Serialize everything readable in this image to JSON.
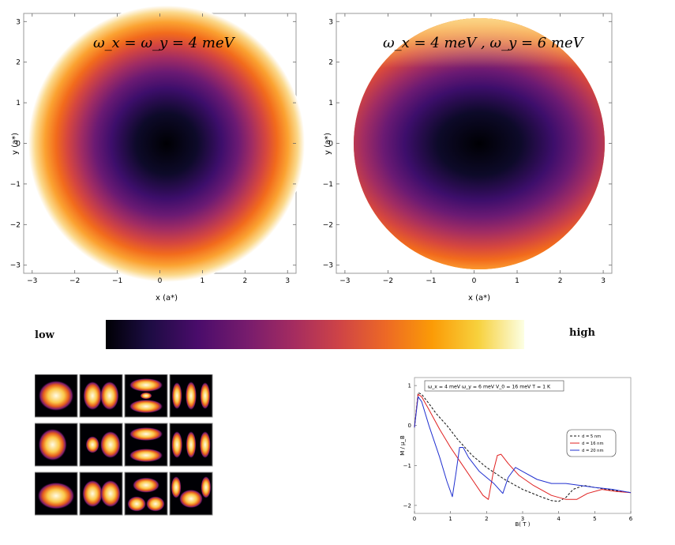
{
  "panels": {
    "left": {
      "annotation": "ω_x = ω_y = 4 meV",
      "xlabel": "x (a*)",
      "ylabel": "y (a*)"
    },
    "right": {
      "annotation": "ω_x = 4 meV , ω_y = 6 meV",
      "xlabel": "x (a*)",
      "ylabel": "y (a*)"
    }
  },
  "colorbar": {
    "low_label": "low",
    "high_label": "high"
  },
  "chart_data": [
    {
      "type": "heatmap",
      "title": "ω_x = ω_y = 4 meV",
      "xlabel": "x (a*)",
      "ylabel": "y (a*)",
      "xlim": [
        -3.2,
        3.2
      ],
      "ylim": [
        -3.2,
        3.2
      ],
      "ticks": [
        -3,
        -2,
        -1,
        0,
        1,
        2,
        3
      ],
      "colormap": "inferno",
      "omega_x_meV": 4,
      "omega_y_meV": 4
    },
    {
      "type": "heatmap",
      "title": "ω_x = 4 meV , ω_y = 6 meV",
      "xlabel": "x (a*)",
      "ylabel": "y (a*)",
      "xlim": [
        -3.2,
        3.2
      ],
      "ylim": [
        -3.2,
        3.2
      ],
      "ticks": [
        -3,
        -2,
        -1,
        0,
        1,
        2,
        3
      ],
      "colormap": "inferno",
      "omega_x_meV": 4,
      "omega_y_meV": 6
    },
    {
      "type": "line",
      "xlabel": "B( T )",
      "ylabel": "M / μ_B",
      "xlim": [
        0,
        6
      ],
      "ylim": [
        -2.2,
        1.2
      ],
      "xticks": [
        0,
        1,
        2,
        3,
        4,
        5,
        6
      ],
      "yticks": [
        1,
        0,
        -1,
        -2
      ],
      "legend_placement": "right",
      "info": "ω_x = 4  meV    ω_y = 6 meV    V_0 = 16 meV   T = 1 K",
      "series": [
        {
          "name": "d = 5 nm",
          "color": "#111111",
          "dash": true,
          "x": [
            0,
            0.1,
            0.2,
            0.4,
            0.6,
            0.9,
            1.2,
            1.6,
            2.0,
            2.5,
            3.0,
            3.5,
            3.8,
            4.0,
            4.2,
            4.4,
            4.7,
            5.0,
            5.5,
            6.0
          ],
          "y": [
            -0.05,
            0.82,
            0.78,
            0.55,
            0.3,
            0.0,
            -0.35,
            -0.75,
            -1.05,
            -1.35,
            -1.6,
            -1.78,
            -1.88,
            -1.9,
            -1.8,
            -1.6,
            -1.5,
            -1.55,
            -1.62,
            -1.68
          ]
        },
        {
          "name": "d = 16 nm",
          "color": "#e02020",
          "dash": false,
          "x": [
            0,
            0.1,
            0.2,
            0.4,
            0.7,
            1.0,
            1.3,
            1.6,
            1.9,
            2.05,
            2.2,
            2.3,
            2.4,
            2.6,
            2.9,
            3.3,
            3.8,
            4.2,
            4.5,
            4.8,
            5.2,
            5.6,
            6.0
          ],
          "y": [
            -0.05,
            0.78,
            0.72,
            0.4,
            -0.1,
            -0.55,
            -0.95,
            -1.35,
            -1.75,
            -1.85,
            -1.1,
            -0.75,
            -0.72,
            -0.95,
            -1.25,
            -1.5,
            -1.75,
            -1.85,
            -1.85,
            -1.7,
            -1.6,
            -1.65,
            -1.68
          ]
        },
        {
          "name": "d = 20 nm",
          "color": "#2030d0",
          "dash": false,
          "x": [
            0,
            0.1,
            0.2,
            0.4,
            0.7,
            0.9,
            1.05,
            1.15,
            1.25,
            1.35,
            1.5,
            1.8,
            2.2,
            2.45,
            2.6,
            2.8,
            3.0,
            3.4,
            3.8,
            4.2,
            4.6,
            5.0,
            5.5,
            6.0
          ],
          "y": [
            -0.05,
            0.72,
            0.6,
            0.0,
            -0.8,
            -1.4,
            -1.78,
            -1.2,
            -0.55,
            -0.55,
            -0.8,
            -1.15,
            -1.45,
            -1.7,
            -1.3,
            -1.05,
            -1.15,
            -1.35,
            -1.45,
            -1.45,
            -1.5,
            -1.55,
            -1.6,
            -1.68
          ]
        }
      ]
    }
  ],
  "orbitals": {
    "grid": [
      [
        "s",
        "px",
        "dx2",
        "fx"
      ],
      [
        "s2",
        "px2",
        "dx2b",
        "fx2"
      ],
      [
        "cres",
        "pxb",
        "tri",
        "arc"
      ]
    ]
  }
}
